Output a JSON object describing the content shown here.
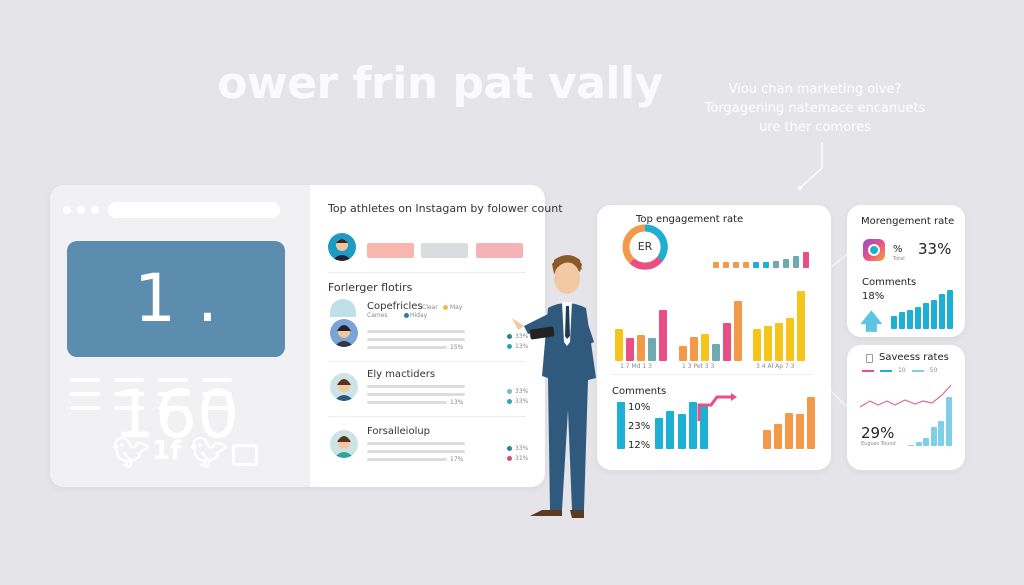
{
  "headline": "ower frin pat vally",
  "note": {
    "lines": [
      "Viou chan marketing olve?",
      "Torgagening natemace encanuets",
      "ure ther comores"
    ]
  },
  "left_card": {
    "big_number": "1 . 160",
    "social_icons": [
      "apple-icon",
      "twitter-icon",
      "facebook-icon",
      "twitter-icon",
      "share-icon"
    ]
  },
  "athletes_panel": {
    "title": "Top athletes on Instagam by folower count",
    "section_title": "Forlerger flotirs",
    "entries": [
      {
        "name": "Copefricles",
        "sub1": "Clear",
        "sub2": "Cames",
        "tag1": "May",
        "tag2": "Hiday",
        "stat": "15%",
        "p1": "33%",
        "p2": "13%"
      },
      {
        "name": "Ely mactiders",
        "stat": "13%",
        "p1": "33%",
        "p2": "33%"
      },
      {
        "name": "Forsalleiolup",
        "stat": "17%",
        "p1": "33%",
        "p2": "31%"
      }
    ],
    "pill_colors": [
      "#f7b7ac",
      "#d9dde0",
      "#f6b3b7"
    ]
  },
  "engagement_card": {
    "title": "Top engagement rate",
    "donut_label": "ER",
    "comments_title": "Comments",
    "comment_values": [
      "10%",
      "23%",
      "12%"
    ],
    "group_labels": [
      "1 7 Md 1 3",
      "1 3 Pet 3 3",
      "3 4 Al Ap 7 3"
    ]
  },
  "rate_card": {
    "title": "Morengement rate",
    "pct_symbol": "%",
    "value": "33%",
    "sub": "Total",
    "comments_title": "Comments",
    "comments_value": "18%"
  },
  "saves_card": {
    "title": "Saveess rates",
    "value": "29%",
    "sub": "Eugues Tound",
    "legend": [
      "10",
      "50"
    ]
  },
  "colors": {
    "yellow": "#f6c51c",
    "pink": "#ea4f83",
    "orange": "#f2994a",
    "teal": "#6fa9b2",
    "blue": "#1eafd4",
    "lightblue": "#7fcfe6",
    "accent": "#5c8daf"
  },
  "chart_data": [
    {
      "type": "bar",
      "name_hint": "",
      "groups": [
        {
          "values": [
            32,
            23,
            26,
            23,
            51
          ],
          "colors": [
            "yellow",
            "pink",
            "orange",
            "teal",
            "pink"
          ]
        },
        {
          "values": [
            15,
            24,
            27,
            17,
            38,
            60
          ],
          "colors": [
            "orange",
            "orange",
            "yellow",
            "teal",
            "pink",
            "orange"
          ]
        },
        {
          "values": [
            32,
            35,
            38,
            43,
            70
          ],
          "colors": [
            "yellow",
            "yellow",
            "yellow",
            "yellow",
            "yellow"
          ]
        }
      ]
    },
    {
      "type": "bar",
      "values": [
        6,
        6,
        6,
        6,
        6,
        6,
        7,
        9,
        12,
        16
      ],
      "colors": [
        "orange",
        "orange",
        "orange",
        "orange",
        "blue",
        "blue",
        "teal",
        "teal",
        "teal",
        "pink"
      ]
    },
    {
      "type": "bar",
      "groups": [
        {
          "values": [
            47,
            31,
            38
          ],
          "colors": [
            "blue",
            "blue",
            "blue"
          ]
        },
        {
          "values": [
            35,
            47,
            45
          ],
          "colors": [
            "blue",
            "blue",
            "blue"
          ]
        },
        {
          "values": [
            19,
            25,
            36,
            35,
            52
          ],
          "colors": [
            "orange",
            "orange",
            "orange",
            "orange",
            "orange"
          ]
        }
      ]
    },
    {
      "type": "bar",
      "values": [
        13,
        17,
        19,
        22,
        26,
        29,
        35,
        39
      ],
      "color": "blue"
    },
    {
      "type": "bar",
      "values": [
        1,
        4,
        8,
        19,
        25,
        49
      ],
      "color": "lightblue"
    }
  ]
}
